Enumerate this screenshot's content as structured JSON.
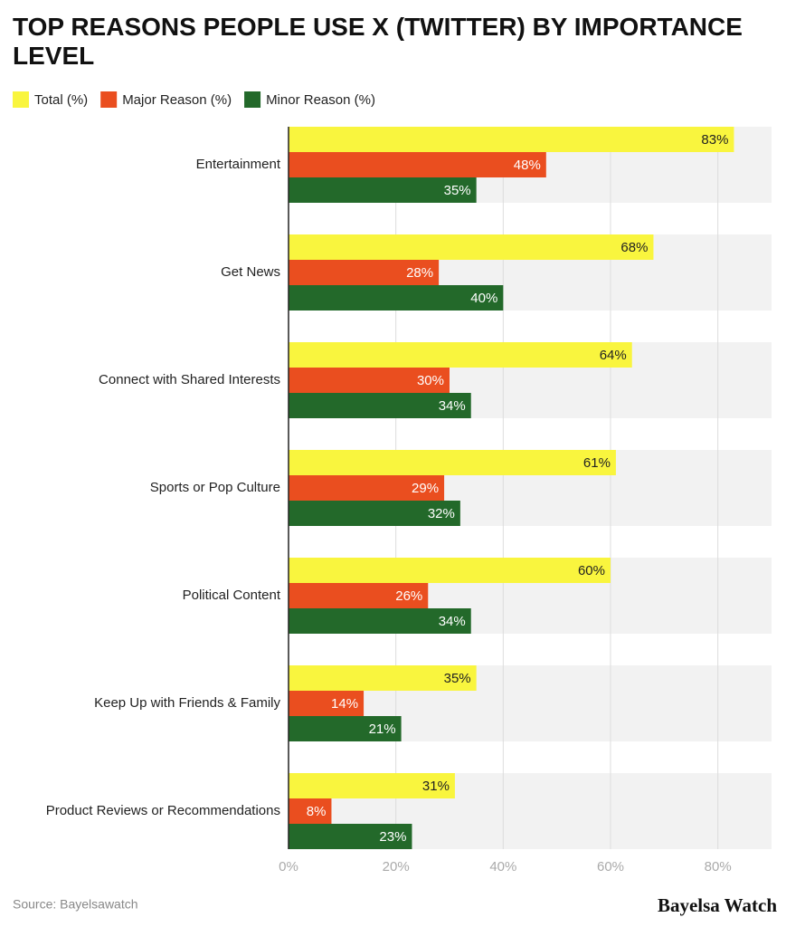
{
  "chart_data": {
    "type": "bar",
    "orientation": "horizontal",
    "title": "TOP REASONS PEOPLE USE X (TWITTER) BY IMPORTANCE LEVEL",
    "categories": [
      "Entertainment",
      "Get News",
      "Connect with Shared Interests",
      "Sports or Pop Culture",
      "Political Content",
      "Keep Up with Friends & Family",
      "Product Reviews or Recommendations"
    ],
    "series": [
      {
        "name": "Total (%)",
        "color": "#f9f53e",
        "values": [
          83,
          68,
          64,
          61,
          60,
          35,
          31
        ],
        "value_labels": [
          "83%",
          "68%",
          "64%",
          "61%",
          "60%",
          "35%",
          "31%"
        ]
      },
      {
        "name": "Major Reason (%)",
        "color": "#ea4e1f",
        "values": [
          48,
          28,
          30,
          29,
          26,
          14,
          8
        ],
        "value_labels": [
          "48%",
          "28%",
          "30%",
          "29%",
          "26%",
          "14%",
          "8%"
        ]
      },
      {
        "name": "Minor Reason (%)",
        "color": "#23692a",
        "values": [
          35,
          40,
          34,
          32,
          34,
          21,
          23
        ],
        "value_labels": [
          "35%",
          "40%",
          "34%",
          "32%",
          "34%",
          "21%",
          "23%"
        ]
      }
    ],
    "xlim": [
      0,
      90
    ],
    "xticks": [
      {
        "value": 0,
        "label": "0%"
      },
      {
        "value": 20,
        "label": "20%"
      },
      {
        "value": 40,
        "label": "40%"
      },
      {
        "value": 60,
        "label": "60%"
      },
      {
        "value": 80,
        "label": "80%"
      }
    ],
    "grid": true,
    "legend": "top-left",
    "source": "Source: Bayelsawatch",
    "brand": "Bayelsa Watch"
  }
}
